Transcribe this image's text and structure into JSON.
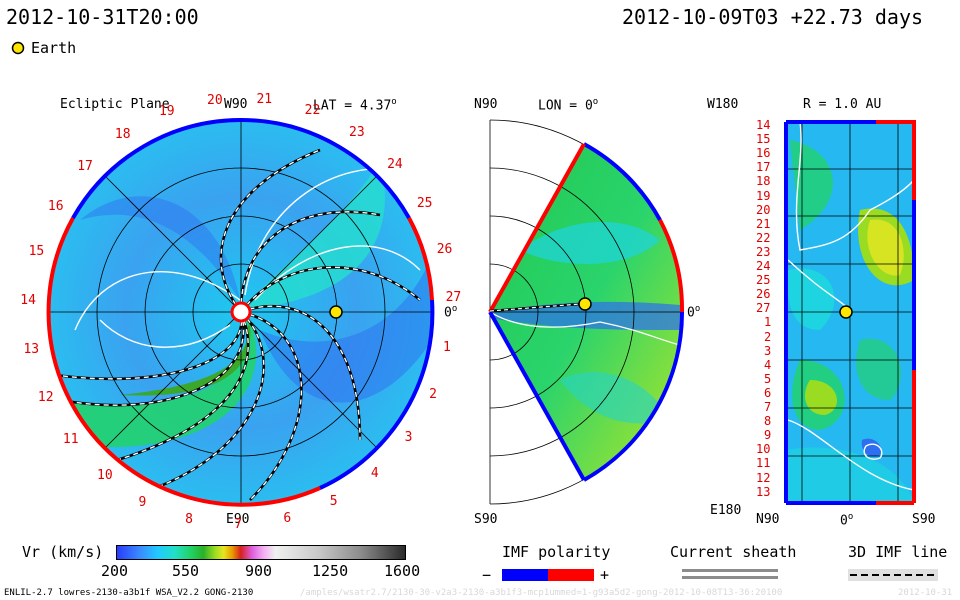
{
  "header": {
    "datetime": "2012-10-31T20:00",
    "run_date": "2012-10-09T03 +22.73 days",
    "legend_earth": "Earth"
  },
  "chart_data": [
    {
      "type": "heatmap",
      "panel": "ecliptic",
      "title": "Ecliptic Plane",
      "lat_label": "LAT = 4.37",
      "lat_deg_mark": "o",
      "top_label": "W90",
      "bottom_label": "E90",
      "right_label": "0",
      "right_deg_mark": "o",
      "carrington_labels": [
        "20",
        "21",
        "22",
        "23",
        "24",
        "25",
        "26",
        "27",
        "1",
        "2",
        "3",
        "4",
        "5",
        "6",
        "7",
        "8",
        "9",
        "10",
        "11",
        "12",
        "13",
        "14",
        "15",
        "16",
        "17",
        "18",
        "19"
      ]
    },
    {
      "type": "heatmap",
      "panel": "meridional",
      "title": "LON = 0",
      "title_deg_mark": "o",
      "top_label": "N90",
      "bottom_label": "S90",
      "right_label": "0",
      "right_deg_mark": "o"
    },
    {
      "type": "heatmap",
      "panel": "spherical",
      "title": "R = 1.0 AU",
      "top_left_label": "W180",
      "bottom_left_label": "E180",
      "x_labels": [
        "N90",
        "0",
        "S90"
      ],
      "x_deg_mark": "o",
      "y_labels": [
        "14",
        "15",
        "16",
        "17",
        "18",
        "19",
        "20",
        "21",
        "22",
        "23",
        "24",
        "25",
        "26",
        "27",
        "1",
        "2",
        "3",
        "4",
        "5",
        "6",
        "7",
        "8",
        "9",
        "10",
        "11",
        "12",
        "13"
      ]
    }
  ],
  "colorbar": {
    "label": "Vr (km/s)",
    "ticks": [
      "200",
      "550",
      "900",
      "1250",
      "1600"
    ],
    "range": [
      200,
      1600
    ]
  },
  "legends": {
    "imf_polarity": "IMF polarity",
    "minus": "−",
    "plus": "+",
    "current_sheath": "Current sheath",
    "imf_line": "3D IMF line",
    "colors": {
      "negative": "#0000ff",
      "positive": "#ff0000"
    }
  },
  "footer": {
    "model": "ENLIL-2.7 lowres-2130-a3b1f WSA_V2.2 GONG-2130",
    "path": "/amples/wsatr2.7/2130-30-v2a3-2130-a3b1f3-mcp1ummed=1-g93a5d2-gong-2012-10-08T13-36:20100",
    "stamp": "2012-10-31"
  }
}
